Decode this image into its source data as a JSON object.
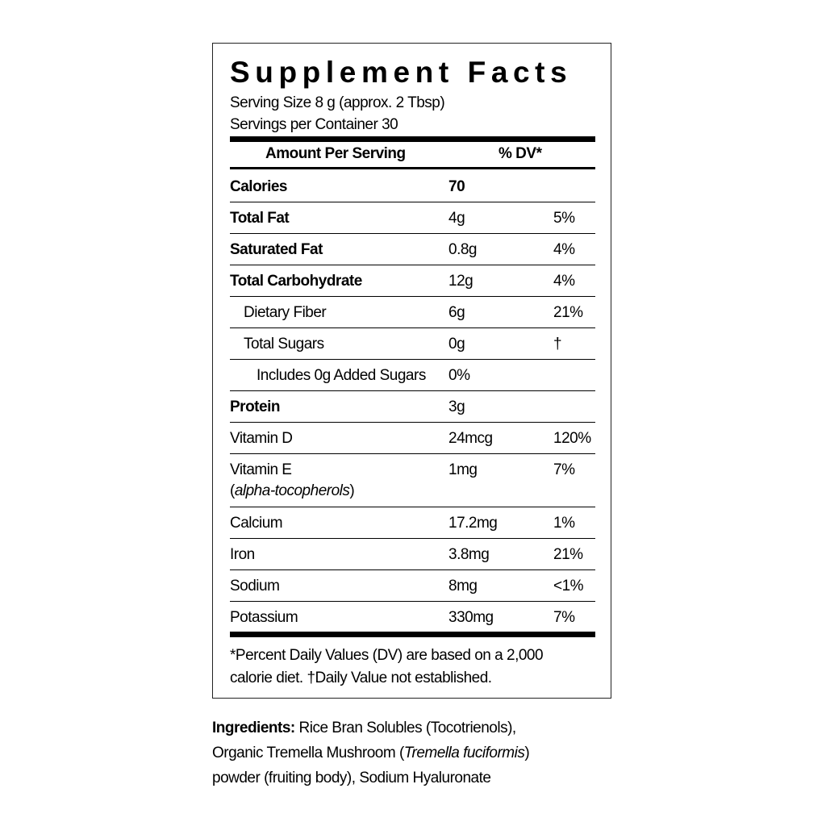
{
  "title": "Supplement Facts",
  "serving_size": "Serving Size 8 g (approx. 2 Tbsp)",
  "servings_per_container": "Servings per Container 30",
  "header": {
    "amount": "Amount Per Serving",
    "dv": "% DV*"
  },
  "rows": [
    {
      "name": "Calories",
      "amount": "70",
      "dv": "",
      "bold": true,
      "indent": 0
    },
    {
      "name": "Total Fat",
      "amount": "4g",
      "dv": "5%",
      "bold": true,
      "indent": 0
    },
    {
      "name": "Saturated Fat",
      "amount": "0.8g",
      "dv": "4%",
      "bold": true,
      "indent": 0
    },
    {
      "name": "Total Carbohydrate",
      "amount": "12g",
      "dv": "4%",
      "bold": true,
      "indent": 0
    },
    {
      "name": "Dietary Fiber",
      "amount": "6g",
      "dv": "21%",
      "bold": false,
      "indent": 1
    },
    {
      "name": "Total Sugars",
      "amount": "0g",
      "dv": "†",
      "bold": false,
      "indent": 1
    },
    {
      "name": "Includes 0g Added Sugars",
      "amount": "0%",
      "dv": "",
      "bold": false,
      "indent": 2
    },
    {
      "name": "Protein",
      "amount": "3g",
      "dv": "",
      "bold": true,
      "indent": 0
    },
    {
      "name": "Vitamin D",
      "amount": "24mcg",
      "dv": "120%",
      "bold": false,
      "indent": 0
    },
    {
      "name": "Vitamin E",
      "subname": "alpha-tocopherols",
      "amount": "1mg",
      "dv": "7%",
      "bold": false,
      "indent": 0
    },
    {
      "name": "Calcium",
      "amount": "17.2mg",
      "dv": "1%",
      "bold": false,
      "indent": 0
    },
    {
      "name": "Iron",
      "amount": "3.8mg",
      "dv": "21%",
      "bold": false,
      "indent": 0
    },
    {
      "name": "Sodium",
      "amount": "8mg",
      "dv": "<1%",
      "bold": false,
      "indent": 0
    },
    {
      "name": "Potassium",
      "amount": "330mg",
      "dv": "7%",
      "bold": false,
      "indent": 0
    }
  ],
  "footnote_1": "*Percent Daily Values (DV) are based on a 2,000",
  "footnote_2": "calorie diet. †Daily Value not established.",
  "ingredients": {
    "label": "Ingredients:",
    "text_1": " Rice Bran Solubles (Tocotrienols),",
    "text_2": "Organic Tremella Mushroom (",
    "italic": "Tremella fuciformis",
    "text_3": ")",
    "text_4": "powder (fruiting body), Sodium Hyaluronate"
  }
}
